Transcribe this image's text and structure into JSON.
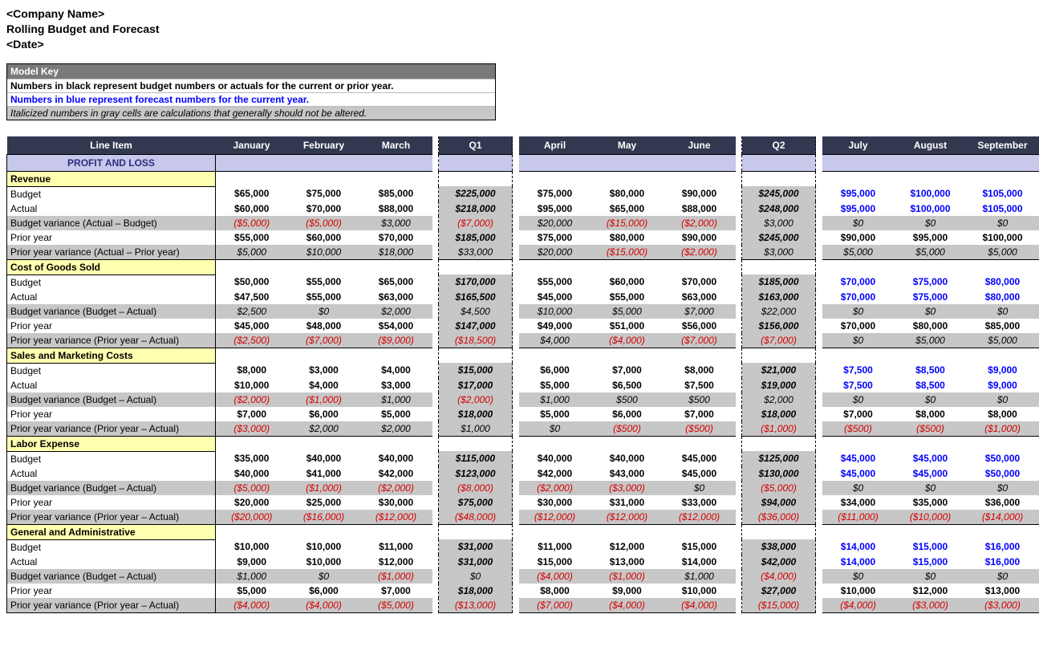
{
  "header": {
    "company": "<Company Name>",
    "title": "Rolling Budget and Forecast",
    "date": "<Date>"
  },
  "model_key": {
    "title": "Model Key",
    "row1": "Numbers in black represent budget numbers or actuals for the current or prior year.",
    "row2": "Numbers in blue represent forecast numbers for the current year.",
    "row3": "Italicized numbers in gray cells are calculations that generally should not be altered."
  },
  "columns": {
    "line_item": "Line Item",
    "months": [
      "January",
      "February",
      "March",
      "April",
      "May",
      "June",
      "July",
      "August",
      "September"
    ],
    "quarters": [
      "Q1",
      "Q2"
    ]
  },
  "section_title": "PROFIT AND LOSS",
  "forecast_start_index": 6,
  "groups": [
    {
      "name": "Revenue",
      "rows": [
        {
          "label": "Budget",
          "type": "bold",
          "vals": [
            "$65,000",
            "$75,000",
            "$85,000",
            "$225,000",
            "$75,000",
            "$80,000",
            "$90,000",
            "$245,000",
            "$95,000",
            "$100,000",
            "$105,000"
          ]
        },
        {
          "label": "Actual",
          "type": "bold",
          "vals": [
            "$60,000",
            "$70,000",
            "$88,000",
            "$218,000",
            "$95,000",
            "$65,000",
            "$88,000",
            "$248,000",
            "$95,000",
            "$100,000",
            "$105,000"
          ]
        },
        {
          "label": "Budget variance (Actual – Budget)",
          "type": "calc",
          "vals": [
            "($5,000)",
            "($5,000)",
            "$3,000",
            "($7,000)",
            "$20,000",
            "($15,000)",
            "($2,000)",
            "$3,000",
            "$0",
            "$0",
            "$0"
          ]
        },
        {
          "label": "Prior year",
          "type": "bold",
          "vals": [
            "$55,000",
            "$60,000",
            "$70,000",
            "$185,000",
            "$75,000",
            "$80,000",
            "$90,000",
            "$245,000",
            "$90,000",
            "$95,000",
            "$100,000"
          ]
        },
        {
          "label": "Prior year variance (Actual – Prior year)",
          "type": "calc",
          "vals": [
            "$5,000",
            "$10,000",
            "$18,000",
            "$33,000",
            "$20,000",
            "($15,000)",
            "($2,000)",
            "$3,000",
            "$5,000",
            "$5,000",
            "$5,000"
          ]
        }
      ]
    },
    {
      "name": "Cost of Goods Sold",
      "rows": [
        {
          "label": "Budget",
          "type": "bold",
          "vals": [
            "$50,000",
            "$55,000",
            "$65,000",
            "$170,000",
            "$55,000",
            "$60,000",
            "$70,000",
            "$185,000",
            "$70,000",
            "$75,000",
            "$80,000"
          ]
        },
        {
          "label": "Actual",
          "type": "bold",
          "vals": [
            "$47,500",
            "$55,000",
            "$63,000",
            "$165,500",
            "$45,000",
            "$55,000",
            "$63,000",
            "$163,000",
            "$70,000",
            "$75,000",
            "$80,000"
          ]
        },
        {
          "label": "Budget variance (Budget – Actual)",
          "type": "calc",
          "vals": [
            "$2,500",
            "$0",
            "$2,000",
            "$4,500",
            "$10,000",
            "$5,000",
            "$7,000",
            "$22,000",
            "$0",
            "$0",
            "$0"
          ]
        },
        {
          "label": "Prior year",
          "type": "bold",
          "vals": [
            "$45,000",
            "$48,000",
            "$54,000",
            "$147,000",
            "$49,000",
            "$51,000",
            "$56,000",
            "$156,000",
            "$70,000",
            "$80,000",
            "$85,000"
          ]
        },
        {
          "label": "Prior year variance (Prior year – Actual)",
          "type": "calc",
          "vals": [
            "($2,500)",
            "($7,000)",
            "($9,000)",
            "($18,500)",
            "$4,000",
            "($4,000)",
            "($7,000)",
            "($7,000)",
            "$0",
            "$5,000",
            "$5,000"
          ]
        }
      ]
    },
    {
      "name": "Sales and Marketing Costs",
      "rows": [
        {
          "label": "Budget",
          "type": "bold",
          "vals": [
            "$8,000",
            "$3,000",
            "$4,000",
            "$15,000",
            "$6,000",
            "$7,000",
            "$8,000",
            "$21,000",
            "$7,500",
            "$8,500",
            "$9,000"
          ]
        },
        {
          "label": "Actual",
          "type": "bold",
          "vals": [
            "$10,000",
            "$4,000",
            "$3,000",
            "$17,000",
            "$5,000",
            "$6,500",
            "$7,500",
            "$19,000",
            "$7,500",
            "$8,500",
            "$9,000"
          ]
        },
        {
          "label": "Budget variance (Budget – Actual)",
          "type": "calc",
          "vals": [
            "($2,000)",
            "($1,000)",
            "$1,000",
            "($2,000)",
            "$1,000",
            "$500",
            "$500",
            "$2,000",
            "$0",
            "$0",
            "$0"
          ]
        },
        {
          "label": "Prior year",
          "type": "bold",
          "vals": [
            "$7,000",
            "$6,000",
            "$5,000",
            "$18,000",
            "$5,000",
            "$6,000",
            "$7,000",
            "$18,000",
            "$7,000",
            "$8,000",
            "$8,000"
          ]
        },
        {
          "label": "Prior year variance (Prior year – Actual)",
          "type": "calc",
          "vals": [
            "($3,000)",
            "$2,000",
            "$2,000",
            "$1,000",
            "$0",
            "($500)",
            "($500)",
            "($1,000)",
            "($500)",
            "($500)",
            "($1,000)"
          ]
        }
      ]
    },
    {
      "name": "Labor Expense",
      "rows": [
        {
          "label": "Budget",
          "type": "bold",
          "vals": [
            "$35,000",
            "$40,000",
            "$40,000",
            "$115,000",
            "$40,000",
            "$40,000",
            "$45,000",
            "$125,000",
            "$45,000",
            "$45,000",
            "$50,000"
          ]
        },
        {
          "label": "Actual",
          "type": "bold",
          "vals": [
            "$40,000",
            "$41,000",
            "$42,000",
            "$123,000",
            "$42,000",
            "$43,000",
            "$45,000",
            "$130,000",
            "$45,000",
            "$45,000",
            "$50,000"
          ]
        },
        {
          "label": "Budget variance (Budget – Actual)",
          "type": "calc",
          "vals": [
            "($5,000)",
            "($1,000)",
            "($2,000)",
            "($8,000)",
            "($2,000)",
            "($3,000)",
            "$0",
            "($5,000)",
            "$0",
            "$0",
            "$0"
          ]
        },
        {
          "label": "Prior year",
          "type": "bold",
          "vals": [
            "$20,000",
            "$25,000",
            "$30,000",
            "$75,000",
            "$30,000",
            "$31,000",
            "$33,000",
            "$94,000",
            "$34,000",
            "$35,000",
            "$36,000"
          ]
        },
        {
          "label": "Prior year variance (Prior year – Actual)",
          "type": "calc",
          "vals": [
            "($20,000)",
            "($16,000)",
            "($12,000)",
            "($48,000)",
            "($12,000)",
            "($12,000)",
            "($12,000)",
            "($36,000)",
            "($11,000)",
            "($10,000)",
            "($14,000)"
          ]
        }
      ]
    },
    {
      "name": "General and Administrative",
      "rows": [
        {
          "label": "Budget",
          "type": "bold",
          "vals": [
            "$10,000",
            "$10,000",
            "$11,000",
            "$31,000",
            "$11,000",
            "$12,000",
            "$15,000",
            "$38,000",
            "$14,000",
            "$15,000",
            "$16,000"
          ]
        },
        {
          "label": "Actual",
          "type": "bold",
          "vals": [
            "$9,000",
            "$10,000",
            "$12,000",
            "$31,000",
            "$15,000",
            "$13,000",
            "$14,000",
            "$42,000",
            "$14,000",
            "$15,000",
            "$16,000"
          ]
        },
        {
          "label": "Budget variance (Budget – Actual)",
          "type": "calc",
          "vals": [
            "$1,000",
            "$0",
            "($1,000)",
            "$0",
            "($4,000)",
            "($1,000)",
            "$1,000",
            "($4,000)",
            "$0",
            "$0",
            "$0"
          ]
        },
        {
          "label": "Prior year",
          "type": "bold",
          "vals": [
            "$5,000",
            "$6,000",
            "$7,000",
            "$18,000",
            "$8,000",
            "$9,000",
            "$10,000",
            "$27,000",
            "$10,000",
            "$12,000",
            "$13,000"
          ]
        },
        {
          "label": "Prior year variance (Prior year – Actual)",
          "type": "calc",
          "vals": [
            "($4,000)",
            "($4,000)",
            "($5,000)",
            "($13,000)",
            "($7,000)",
            "($4,000)",
            "($4,000)",
            "($15,000)",
            "($4,000)",
            "($3,000)",
            "($3,000)"
          ]
        }
      ]
    }
  ],
  "colors": {
    "header_bg": "#323850",
    "section_bg": "#c7c8ea",
    "section_text": "#2a2f7e",
    "group_bg": "#ffffb0",
    "calc_bg": "#c7c7c7",
    "negative": "#d40000",
    "forecast": "#0000ff"
  }
}
